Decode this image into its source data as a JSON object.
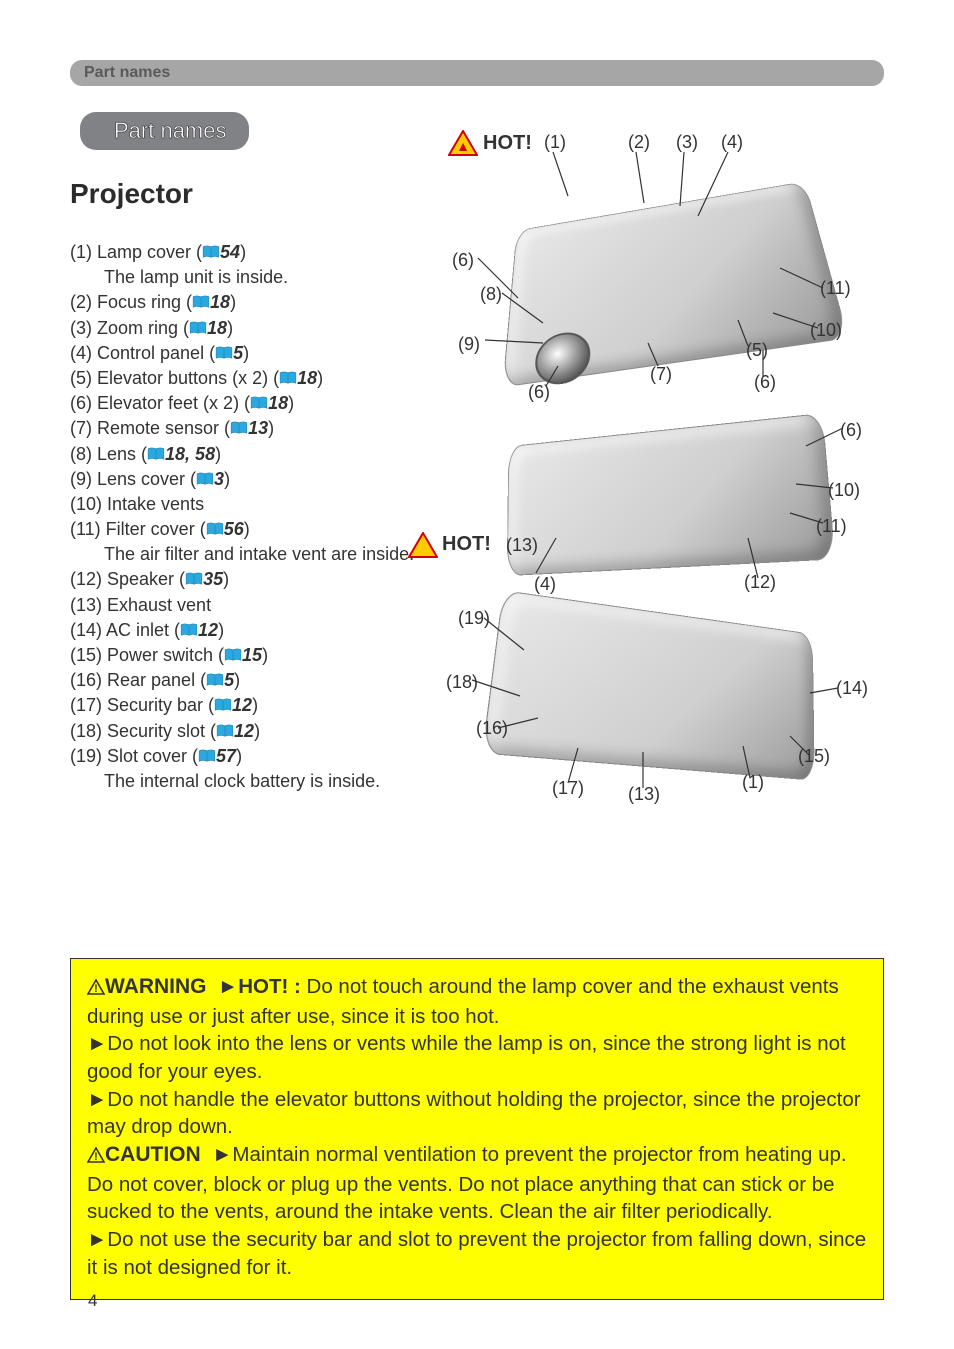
{
  "header": {
    "breadcrumb": "Part names"
  },
  "pill": {
    "label": "Part names"
  },
  "section": {
    "title": "Projector"
  },
  "colors": {
    "header_bg": "#a6a6a6",
    "pill_bg": "#808285",
    "warning_bg": "#ffff00",
    "text": "#333333",
    "book_icon": "#2aa9e0"
  },
  "parts": [
    {
      "num": "(1)",
      "name": "Lamp cover",
      "ref": "54",
      "note": "The lamp unit is inside."
    },
    {
      "num": "(2)",
      "name": "Focus ring",
      "ref": "18"
    },
    {
      "num": "(3)",
      "name": "Zoom ring",
      "ref": "18"
    },
    {
      "num": "(4)",
      "name": "Control panel",
      "ref": "5"
    },
    {
      "num": "(5)",
      "name": "Elevator buttons",
      "suffix": " (x 2)",
      "ref": "18"
    },
    {
      "num": "(6)",
      "name": "Elevator feet",
      "suffix": "  (x 2)",
      "ref": "18"
    },
    {
      "num": "(7)",
      "name": "Remote sensor",
      "ref": "13"
    },
    {
      "num": "(8)",
      "name": "Lens",
      "ref": "18, 58"
    },
    {
      "num": "(9)",
      "name": "Lens cover",
      "ref": "3"
    },
    {
      "num": "(10)",
      "name": "Intake vents",
      "noref": true
    },
    {
      "num": "(11)",
      "name": "Filter cover",
      "ref": "56",
      "note": "The air filter and intake vent are inside."
    },
    {
      "num": "(12)",
      "name": "Speaker",
      "ref": "35"
    },
    {
      "num": "(13)",
      "name": "Exhaust vent",
      "noref": true
    },
    {
      "num": "(14)",
      "name": "AC inlet",
      "ref": "12"
    },
    {
      "num": "(15)",
      "name": "Power switch",
      "ref": "15"
    },
    {
      "num": "(16)",
      "name": "Rear panel",
      "ref": "5"
    },
    {
      "num": "(17)",
      "name": "Security bar",
      "ref": "12"
    },
    {
      "num": "(18)",
      "name": "Security slot",
      "ref": "12"
    },
    {
      "num": "(19)",
      "name": "Slot cover",
      "ref": "57",
      "note": "The internal clock battery is inside."
    }
  ],
  "diagram": {
    "hot1": "HOT!",
    "hot2": "HOT!",
    "callouts_top": {
      "c1": "(1)",
      "c2": "(2)",
      "c3": "(3)",
      "c4": "(4)"
    },
    "callouts": {
      "c5": "(5)",
      "c6a": "(6)",
      "c6b": "(6)",
      "c6c": "(6)",
      "c6d": "(6)",
      "c7": "(7)",
      "c8": "(8)",
      "c9": "(9)",
      "c10a": "(10)",
      "c10b": "(10)",
      "c11a": "(11)",
      "c11b": "(11)",
      "c12": "(12)",
      "c13a": "(13)",
      "c13b": "(13)",
      "c14": "(14)",
      "c15": "(15)",
      "c16": "(16)",
      "c17": "(17)",
      "c18": "(18)",
      "c19": "(19)",
      "c1b": "(1)",
      "c4b": "(4)"
    }
  },
  "warning": {
    "heading1": "WARNING",
    "hot": "HOT! :",
    "w1a": " Do not touch around the lamp cover and the exhaust vents during use or just after use, since it is too hot.",
    "w2": "Do not look into the lens or vents while the lamp is on, since the strong light is not good for your eyes.",
    "w3": "Do not handle the elevator buttons without holding the projector, since the projector may drop down.",
    "heading2": "CAUTION",
    "w4": "Maintain normal ventilation to prevent the projector from heating up. Do not cover, block or plug up the vents. Do not place anything that can stick or be sucked to the vents, around the intake vents. Clean the air filter periodically.",
    "w5": "Do not use the security bar and slot to prevent the projector from falling down, since it is not designed for it."
  },
  "page_number": "4"
}
